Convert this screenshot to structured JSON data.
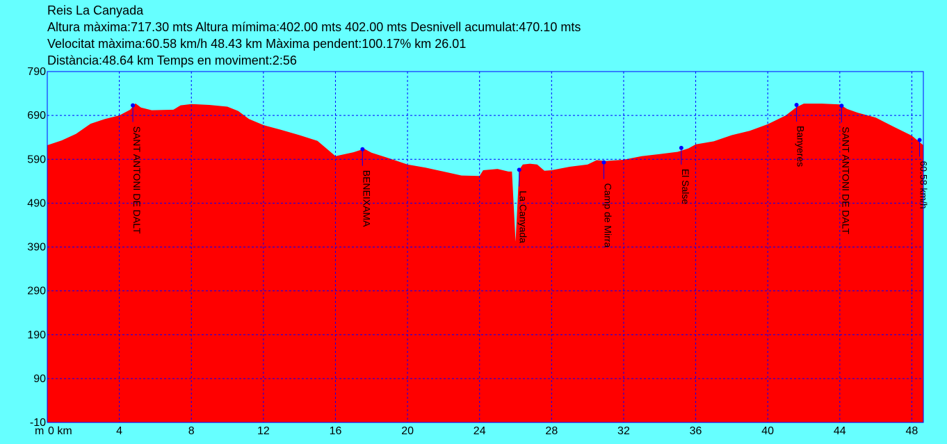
{
  "header": {
    "title": "Reis La Canyada",
    "line2": "Altura màxima:717.30 mts Altura mímima:402.00 mts 402.00 mts Desnivell acumulat:470.10 mts",
    "line3": "Velocitat màxima:60.58 km/h 48.43 km Màxima pendent:100.17% km 26.01",
    "line4": "Distància:48.64 km Temps en moviment:2:56"
  },
  "colors": {
    "background": "#66ffff",
    "fill": "#ff0000",
    "grid": "#0000ff",
    "marker": "#0000ff"
  },
  "chart_data": {
    "type": "area",
    "x_unit_label": "m",
    "x_tick_suffix": "km",
    "xlim": [
      0,
      48.64
    ],
    "ylim": [
      -10,
      790
    ],
    "x_ticks": [
      0,
      4,
      8,
      12,
      16,
      20,
      24,
      28,
      32,
      36,
      40,
      44,
      48
    ],
    "y_ticks": [
      790,
      690,
      590,
      490,
      390,
      290,
      190,
      90,
      -10
    ],
    "grid": true,
    "profile": [
      [
        0,
        622
      ],
      [
        0.8,
        633
      ],
      [
        1.6,
        648
      ],
      [
        2.4,
        671
      ],
      [
        3.2,
        682
      ],
      [
        4.0,
        690
      ],
      [
        4.6,
        703
      ],
      [
        4.9,
        717.3
      ],
      [
        5.2,
        708
      ],
      [
        5.8,
        702
      ],
      [
        7.0,
        703
      ],
      [
        7.4,
        713
      ],
      [
        8.0,
        716
      ],
      [
        9.0,
        714
      ],
      [
        10.0,
        710
      ],
      [
        10.6,
        700
      ],
      [
        11.2,
        682
      ],
      [
        12.0,
        668
      ],
      [
        13.0,
        657
      ],
      [
        14.0,
        645
      ],
      [
        15.0,
        632
      ],
      [
        16.0,
        597
      ],
      [
        17.0,
        606
      ],
      [
        17.6,
        614
      ],
      [
        18.0,
        605
      ],
      [
        19.0,
        592
      ],
      [
        20.0,
        578
      ],
      [
        21.0,
        571
      ],
      [
        22.0,
        562
      ],
      [
        23.0,
        553
      ],
      [
        24.0,
        552
      ],
      [
        24.2,
        565
      ],
      [
        25.0,
        568
      ],
      [
        25.6,
        562
      ],
      [
        25.8,
        562
      ],
      [
        26.0,
        402
      ],
      [
        26.2,
        566
      ],
      [
        26.4,
        578
      ],
      [
        26.8,
        580
      ],
      [
        27.2,
        578
      ],
      [
        27.6,
        564
      ],
      [
        28.0,
        565
      ],
      [
        29.0,
        573
      ],
      [
        30.0,
        578
      ],
      [
        30.5,
        588
      ],
      [
        31.0,
        586
      ],
      [
        32.0,
        589
      ],
      [
        33.0,
        597
      ],
      [
        34.0,
        602
      ],
      [
        35.0,
        607
      ],
      [
        35.6,
        615
      ],
      [
        36.0,
        624
      ],
      [
        37.0,
        631
      ],
      [
        38.0,
        645
      ],
      [
        39.0,
        655
      ],
      [
        40.0,
        670
      ],
      [
        41.0,
        690
      ],
      [
        41.6,
        709
      ],
      [
        42.0,
        717
      ],
      [
        43.0,
        717
      ],
      [
        44.0,
        715
      ],
      [
        44.4,
        705
      ],
      [
        45.0,
        696
      ],
      [
        46.0,
        685
      ],
      [
        47.0,
        664
      ],
      [
        48.0,
        644
      ],
      [
        48.64,
        622
      ]
    ],
    "waypoints": [
      {
        "label": "SANT ANTONI DE DALT",
        "x": 4.75,
        "y": 713
      },
      {
        "label": "BENEIXAMA",
        "x": 17.5,
        "y": 613
      },
      {
        "label": "La Canyada",
        "x": 26.2,
        "y": 566
      },
      {
        "label": "Camp de Mirra",
        "x": 30.9,
        "y": 583
      },
      {
        "label": "El Salse",
        "x": 35.2,
        "y": 616
      },
      {
        "label": "Banyeres",
        "x": 41.6,
        "y": 714
      },
      {
        "label": "SANT ANTONI DE DALT",
        "x": 44.1,
        "y": 712
      },
      {
        "label": "60.58 km/h",
        "x": 48.43,
        "y": 634
      }
    ]
  }
}
